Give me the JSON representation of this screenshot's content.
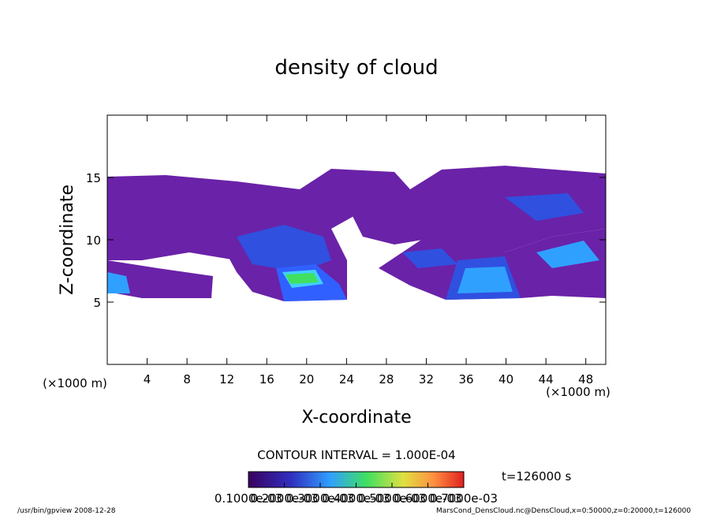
{
  "chart_data": {
    "type": "contour",
    "title": "density of cloud",
    "x_label": "X-coordinate",
    "y_label": "Z-coordinate",
    "x_unit_left": "(×1000 m)",
    "x_unit_right": "(×1000 m)",
    "xlim": [
      0,
      50
    ],
    "xticks": [
      4,
      8,
      12,
      16,
      20,
      24,
      28,
      32,
      36,
      40,
      44,
      48
    ],
    "ylim": [
      0,
      20
    ],
    "yticks": [
      5,
      10,
      15
    ],
    "contour_interval": "CONTOUR INTERVAL = 1.000E-04",
    "time_label": "t=126000 s",
    "clim": [
      0.0001,
      0.0007
    ],
    "colorbar_ticks": [
      {
        "value": 0.0001,
        "label": "0.1000e-03"
      },
      {
        "value": 0.0002,
        "label": "0.2000e-03"
      },
      {
        "value": 0.0003,
        "label": "0.3000e-03"
      },
      {
        "value": 0.0004,
        "label": "0.4000e-03"
      },
      {
        "value": 0.0005,
        "label": "0.5000e-03"
      },
      {
        "value": 0.0006,
        "label": "0.6000e-03"
      },
      {
        "value": 0.0007,
        "label": "0.7000e-03"
      }
    ],
    "footer_left": "/usr/bin/gpview  2008-12-28",
    "footer_right": "MarsCond_DensCloud.nc@DensCloud,x=0:50000,z=0:20000,t=126000"
  }
}
